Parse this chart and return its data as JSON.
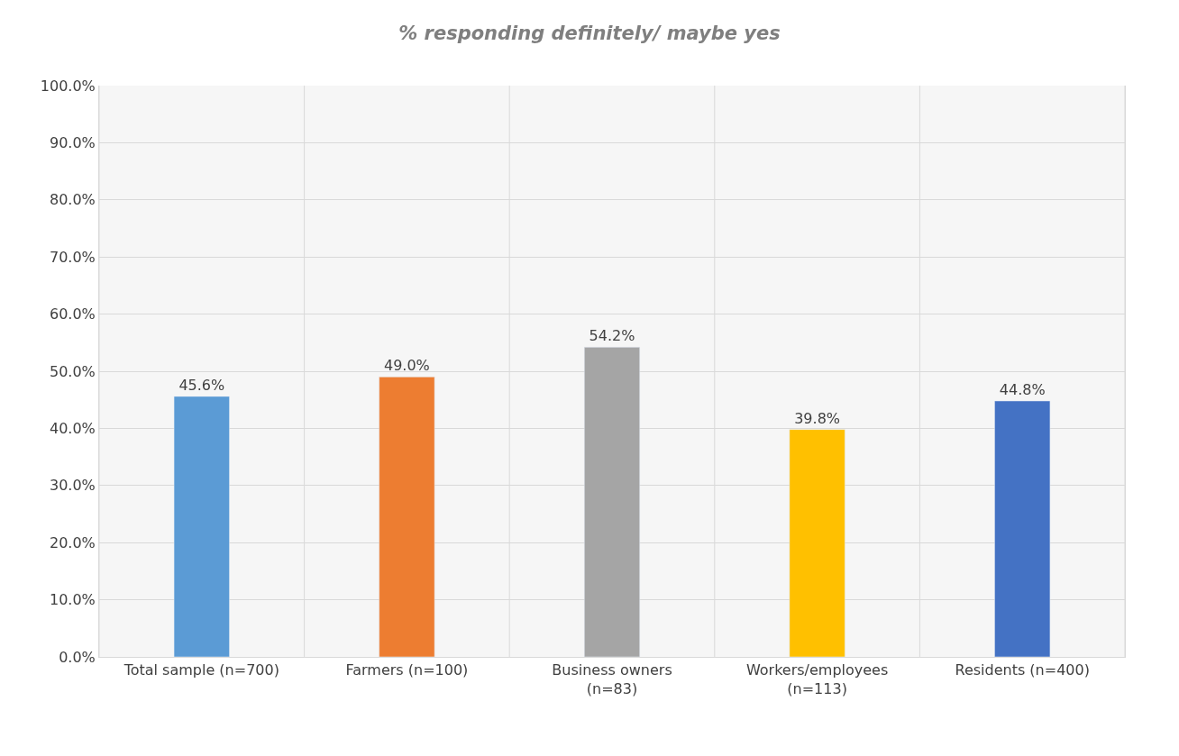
{
  "chart_data": {
    "type": "bar",
    "title": "% responding definitely/ maybe yes",
    "categories": [
      "Total sample (n=700)",
      "Farmers (n=100)",
      "Business owners (n=83)",
      "Workers/employees (n=113)",
      "Residents (n=400)"
    ],
    "values": [
      45.6,
      49.0,
      54.2,
      39.8,
      44.8
    ],
    "colors": [
      "#5b9bd5",
      "#ed7d31",
      "#a5a5a5",
      "#ffc000",
      "#4472c4"
    ],
    "value_labels": [
      "45.6%",
      "49.0%",
      "54.2%",
      "39.8%",
      "44.8%"
    ],
    "ylim": [
      0,
      100
    ],
    "yticks": [
      {
        "value": 0,
        "label": "0.0%"
      },
      {
        "value": 10,
        "label": "10.0%"
      },
      {
        "value": 20,
        "label": "20.0%"
      },
      {
        "value": 30,
        "label": "30.0%"
      },
      {
        "value": 40,
        "label": "40.0%"
      },
      {
        "value": 50,
        "label": "50.0%"
      },
      {
        "value": 60,
        "label": "60.0%"
      },
      {
        "value": 70,
        "label": "70.0%"
      },
      {
        "value": 80,
        "label": "80.0%"
      },
      {
        "value": 90,
        "label": "90.0%"
      },
      {
        "value": 100,
        "label": "100.0%"
      }
    ],
    "grid": true
  }
}
